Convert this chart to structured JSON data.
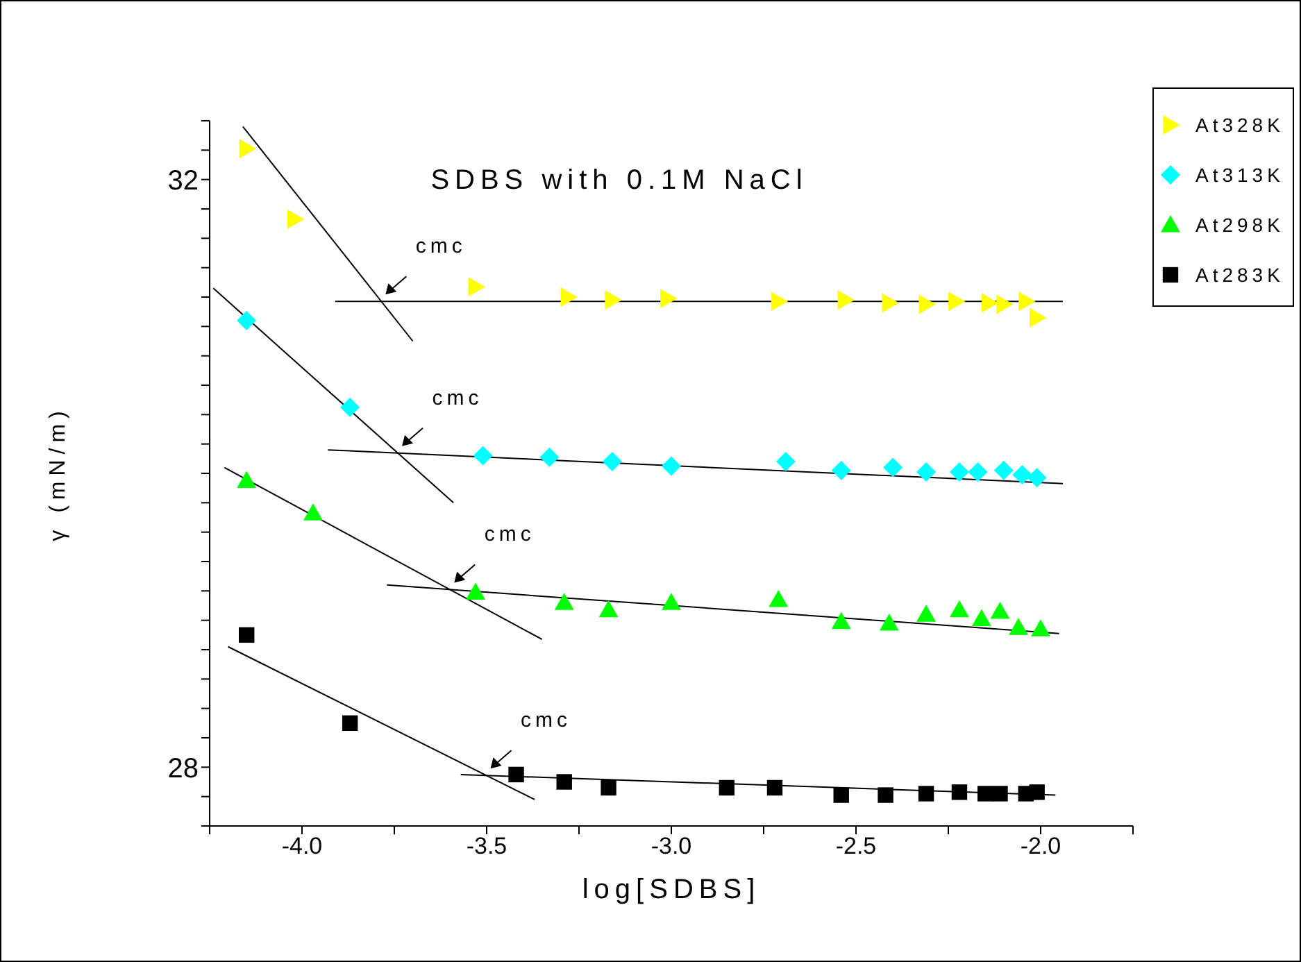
{
  "chart_data": {
    "type": "scatter",
    "title": "SDBS with 0.1M NaCl",
    "xlabel": "log[SDBS]",
    "ylabel": "γ (mN/m)",
    "xlim": [
      -4.25,
      -1.75
    ],
    "xticks": [
      {
        "value": -4.25,
        "label": null
      },
      {
        "value": -4.0,
        "label": "-4.0"
      },
      {
        "value": -3.75,
        "label": null
      },
      {
        "value": -3.5,
        "label": "-3.5"
      },
      {
        "value": -3.25,
        "label": null
      },
      {
        "value": -3.0,
        "label": "-3.0"
      },
      {
        "value": -2.75,
        "label": null
      },
      {
        "value": -2.5,
        "label": "-2.5"
      },
      {
        "value": -2.25,
        "label": null
      },
      {
        "value": -2.0,
        "label": "-2.0"
      },
      {
        "value": -1.75,
        "label": null
      }
    ],
    "ylim": [
      27.6,
      32.4
    ],
    "yticks": [
      {
        "value": 27.6,
        "label": null
      },
      {
        "value": 27.8,
        "label": null
      },
      28,
      {
        "value": 28.2,
        "label": null
      },
      {
        "value": 28.4,
        "label": null
      },
      {
        "value": 28.6,
        "label": null
      },
      {
        "value": 28.8,
        "label": null
      },
      {
        "value": 29.0,
        "label": null
      },
      {
        "value": 29.2,
        "label": null
      },
      {
        "value": 29.4,
        "label": null
      },
      {
        "value": 29.6,
        "label": null
      },
      {
        "value": 29.8,
        "label": null
      },
      {
        "value": 30.0,
        "label": null
      },
      {
        "value": 30.2,
        "label": null
      },
      {
        "value": 30.4,
        "label": null
      },
      {
        "value": 30.6,
        "label": null
      },
      {
        "value": 30.8,
        "label": null
      },
      {
        "value": 31.0,
        "label": null
      },
      {
        "value": 31.2,
        "label": null
      },
      {
        "value": 31.4,
        "label": null
      },
      {
        "value": 31.6,
        "label": null
      },
      {
        "value": 31.8,
        "label": null
      },
      32,
      {
        "value": 32.2,
        "label": null
      },
      {
        "value": 32.4,
        "label": null
      }
    ],
    "legend": "top right",
    "series": [
      {
        "name": "At328K",
        "marker": "triangle",
        "color": "#ffff00",
        "x": [
          -4.15,
          -4.02,
          -3.53,
          -3.28,
          -3.16,
          -3.01,
          -2.71,
          -2.53,
          -2.41,
          -2.31,
          -2.23,
          -2.14,
          -2.1,
          -2.04,
          -2.01
        ],
        "values": [
          32.21,
          31.73,
          31.27,
          31.2,
          31.18,
          31.19,
          31.17,
          31.18,
          31.16,
          31.15,
          31.17,
          31.16,
          31.15,
          31.17,
          31.06
        ]
      },
      {
        "name": "At313K",
        "marker": "diamond",
        "color": "#00ffff",
        "x": [
          -4.15,
          -3.87,
          -3.51,
          -3.33,
          -3.16,
          -3.0,
          -2.69,
          -2.54,
          -2.4,
          -2.31,
          -2.22,
          -2.17,
          -2.1,
          -2.05,
          -2.01
        ],
        "values": [
          31.04,
          30.45,
          30.12,
          30.11,
          30.08,
          30.05,
          30.08,
          30.02,
          30.04,
          30.01,
          30.01,
          30.01,
          30.02,
          29.99,
          29.97
        ]
      },
      {
        "name": "At298K",
        "marker": "triangle",
        "color": "#00ff00",
        "x": [
          -4.15,
          -3.97,
          -3.53,
          -3.29,
          -3.17,
          -3.0,
          -2.71,
          -2.54,
          -2.41,
          -2.31,
          -2.22,
          -2.16,
          -2.11,
          -2.06,
          -2.0
        ],
        "values": [
          29.95,
          29.73,
          29.19,
          29.12,
          29.07,
          29.12,
          29.14,
          28.99,
          28.98,
          29.04,
          29.07,
          29.01,
          29.06,
          28.95,
          28.94
        ]
      },
      {
        "name": "At283K",
        "marker": "square",
        "color": "#000000",
        "x": [
          -4.15,
          -3.87,
          -3.42,
          -3.29,
          -3.17,
          -2.85,
          -2.72,
          -2.54,
          -2.42,
          -2.31,
          -2.22,
          -2.15,
          -2.11,
          -2.04,
          -2.01
        ],
        "values": [
          28.9,
          28.3,
          27.95,
          27.9,
          27.86,
          27.86,
          27.86,
          27.81,
          27.81,
          27.82,
          27.83,
          27.82,
          27.82,
          27.82,
          27.83
        ]
      },
      {
        "type": "line",
        "marker": "none",
        "color": "#000000",
        "x": [
          -4.16,
          -3.7
        ],
        "values": [
          32.36,
          30.9
        ]
      },
      {
        "type": "line",
        "marker": "none",
        "color": "#000000",
        "x": [
          -3.91,
          -1.94
        ],
        "values": [
          31.17,
          31.17
        ]
      },
      {
        "type": "line",
        "marker": "none",
        "color": "#000000",
        "x": [
          -4.24,
          -3.59
        ],
        "values": [
          31.26,
          29.8
        ]
      },
      {
        "type": "line",
        "marker": "none",
        "color": "#000000",
        "x": [
          -3.93,
          -1.94
        ],
        "values": [
          30.16,
          29.93
        ]
      },
      {
        "type": "line",
        "marker": "none",
        "color": "#000000",
        "x": [
          -4.21,
          -3.35
        ],
        "values": [
          30.04,
          28.87
        ]
      },
      {
        "type": "line",
        "marker": "none",
        "color": "#000000",
        "x": [
          -3.77,
          -1.95
        ],
        "values": [
          29.24,
          28.91
        ]
      },
      {
        "type": "line",
        "marker": "none",
        "color": "#000000",
        "x": [
          -4.2,
          -3.37
        ],
        "values": [
          28.82,
          27.78
        ]
      },
      {
        "type": "line",
        "marker": "none",
        "color": "#000000",
        "x": [
          -3.57,
          -1.96
        ],
        "values": [
          27.95,
          27.81
        ]
      }
    ],
    "annotations": [
      "cmc",
      "cmc",
      "cmc",
      "cmc"
    ]
  }
}
